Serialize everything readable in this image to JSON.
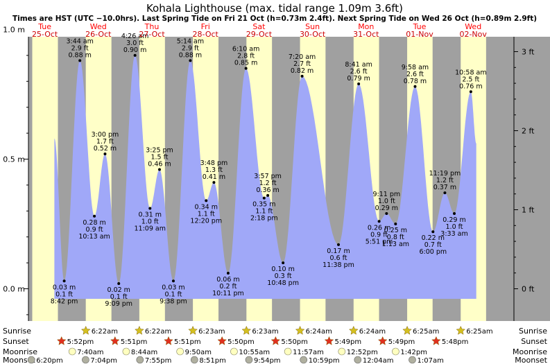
{
  "title": "Kohala Lighthouse (max. tidal range 1.09m 3.6ft)",
  "subtitle": "Times are HST (UTC −10.0hrs). Last Spring Tide on Fri 21 Oct (h=0.73m 2.4ft). Next Spring Tide on Wed 26 Oct (h=0.89m 2.9ft)",
  "colors": {
    "day": "#ffffc8",
    "night": "#a0a0a0",
    "water": "#a0a8f8",
    "day_label": "#ff0000",
    "date_label": "#cc0000",
    "sun_star": "#d4c020",
    "sunset_star": "#e03020",
    "moon": "#ffffc0",
    "moonset": "#b0b0a0"
  },
  "chart_data": {
    "type": "area",
    "title": "Kohala Lighthouse (max. tidal range 1.09m 3.6ft)",
    "ylabel_left_unit": "m",
    "ylabel_right_unit": "ft",
    "yticks_m": [
      "0.0 m",
      "0.5 m",
      "1.0 m"
    ],
    "yticks_ft": [
      "0 ft",
      "1 ft",
      "2 ft",
      "3 ft"
    ],
    "ylim_m": [
      -0.1,
      1.35
    ],
    "days": [
      {
        "dow": "Tue",
        "date": "25-Oct"
      },
      {
        "dow": "Wed",
        "date": "26-Oct"
      },
      {
        "dow": "Thu",
        "date": "27-Oct"
      },
      {
        "dow": "Fri",
        "date": "28-Oct"
      },
      {
        "dow": "Sat",
        "date": "29-Oct"
      },
      {
        "dow": "Sun",
        "date": "30-Oct"
      },
      {
        "dow": "Mon",
        "date": "31-Oct"
      },
      {
        "dow": "Tue",
        "date": "01-Nov"
      },
      {
        "dow": "Wed",
        "date": "02-Nov"
      }
    ],
    "tides": [
      {
        "day": 0,
        "time": "8:42 pm",
        "hour": 20.7,
        "m": 0.03,
        "ft": "0.1 ft",
        "m_label": "0.03 m",
        "type": "low"
      },
      {
        "day": 1,
        "time": "3:44 am",
        "hour": 3.73,
        "m": 0.88,
        "ft": "2.9 ft",
        "m_label": "0.88 m",
        "type": "high"
      },
      {
        "day": 1,
        "time": "10:13 am",
        "hour": 10.22,
        "m": 0.28,
        "ft": "0.9 ft",
        "m_label": "0.28 m",
        "type": "low"
      },
      {
        "day": 1,
        "time": "3:00 pm",
        "hour": 15.0,
        "m": 0.52,
        "ft": "1.7 ft",
        "m_label": "0.52 m",
        "type": "high"
      },
      {
        "day": 1,
        "time": "9:09 pm",
        "hour": 21.15,
        "m": 0.02,
        "ft": "0.1 ft",
        "m_label": "0.02 m",
        "type": "low"
      },
      {
        "day": 2,
        "time": "4:26 am",
        "hour": 4.43,
        "m": 0.9,
        "ft": "3.0 ft",
        "m_label": "0.90 m",
        "type": "high"
      },
      {
        "day": 2,
        "time": "11:09 am",
        "hour": 11.15,
        "m": 0.31,
        "ft": "1.0 ft",
        "m_label": "0.31 m",
        "type": "low"
      },
      {
        "day": 2,
        "time": "3:25 pm",
        "hour": 15.42,
        "m": 0.46,
        "ft": "1.5 ft",
        "m_label": "0.46 m",
        "type": "high"
      },
      {
        "day": 2,
        "time": "9:38 pm",
        "hour": 21.63,
        "m": 0.03,
        "ft": "0.1 ft",
        "m_label": "0.03 m",
        "type": "low"
      },
      {
        "day": 3,
        "time": "5:14 am",
        "hour": 5.23,
        "m": 0.88,
        "ft": "2.9 ft",
        "m_label": "0.88 m",
        "type": "high"
      },
      {
        "day": 3,
        "time": "12:20 pm",
        "hour": 12.33,
        "m": 0.34,
        "ft": "1.1 ft",
        "m_label": "0.34 m",
        "type": "low"
      },
      {
        "day": 3,
        "time": "3:48 pm",
        "hour": 15.8,
        "m": 0.41,
        "ft": "1.3 ft",
        "m_label": "0.41 m",
        "type": "high"
      },
      {
        "day": 3,
        "time": "10:11 pm",
        "hour": 22.18,
        "m": 0.06,
        "ft": "0.2 ft",
        "m_label": "0.06 m",
        "type": "low"
      },
      {
        "day": 4,
        "time": "6:10 am",
        "hour": 6.17,
        "m": 0.85,
        "ft": "2.8 ft",
        "m_label": "0.85 m",
        "type": "high"
      },
      {
        "day": 4,
        "time": "2:18 pm",
        "hour": 14.3,
        "m": 0.35,
        "ft": "1.1 ft",
        "m_label": "0.35 m",
        "type": "low"
      },
      {
        "day": 4,
        "time": "3:57 pm",
        "hour": 15.95,
        "m": 0.36,
        "ft": "1.2 ft",
        "m_label": "0.36 m",
        "type": "high"
      },
      {
        "day": 4,
        "time": "10:48 pm",
        "hour": 22.8,
        "m": 0.1,
        "ft": "0.3 ft",
        "m_label": "0.10 m",
        "type": "low"
      },
      {
        "day": 5,
        "time": "7:20 am",
        "hour": 7.33,
        "m": 0.82,
        "ft": "2.7 ft",
        "m_label": "0.82 m",
        "type": "high"
      },
      {
        "day": 5,
        "time": "11:38 pm",
        "hour": 23.63,
        "m": 0.17,
        "ft": "0.6 ft",
        "m_label": "0.17 m",
        "type": "low"
      },
      {
        "day": 6,
        "time": "8:41 am",
        "hour": 8.68,
        "m": 0.79,
        "ft": "2.6 ft",
        "m_label": "0.79 m",
        "type": "high"
      },
      {
        "day": 6,
        "time": "5:51 pm",
        "hour": 17.85,
        "m": 0.26,
        "ft": "0.9 ft",
        "m_label": "0.26 m",
        "type": "low"
      },
      {
        "day": 6,
        "time": "9:11 pm",
        "hour": 21.18,
        "m": 0.29,
        "ft": "1.0 ft",
        "m_label": "0.29 m",
        "type": "high"
      },
      {
        "day": 7,
        "time": "1:13 am",
        "hour": 1.22,
        "m": 0.25,
        "ft": "0.8 ft",
        "m_label": "0.25 m",
        "type": "low"
      },
      {
        "day": 7,
        "time": "9:58 am",
        "hour": 9.97,
        "m": 0.78,
        "ft": "2.6 ft",
        "m_label": "0.78 m",
        "type": "high"
      },
      {
        "day": 7,
        "time": "6:00 pm",
        "hour": 18.0,
        "m": 0.22,
        "ft": "0.7 ft",
        "m_label": "0.22 m",
        "type": "low"
      },
      {
        "day": 7,
        "time": "11:19 pm",
        "hour": 23.32,
        "m": 0.37,
        "ft": "1.2 ft",
        "m_label": "0.37 m",
        "type": "high"
      },
      {
        "day": 8,
        "time": "3:33 am",
        "hour": 3.55,
        "m": 0.29,
        "ft": "1.0 ft",
        "m_label": "0.29 m",
        "type": "low"
      },
      {
        "day": 8,
        "time": "10:58 am",
        "hour": 10.97,
        "m": 0.76,
        "ft": "2.5 ft",
        "m_label": "0.76 m",
        "type": "high"
      }
    ],
    "curve_start": {
      "day": 0,
      "hour": 16.3,
      "m": 0.58
    },
    "curve_end": {
      "day": 8,
      "hour": 13.4,
      "m": 0.56
    },
    "sunrise": [
      {
        "day": 1,
        "time": "6:22am",
        "hour": 6.37
      },
      {
        "day": 2,
        "time": "6:22am",
        "hour": 6.37
      },
      {
        "day": 3,
        "time": "6:23am",
        "hour": 6.38
      },
      {
        "day": 4,
        "time": "6:23am",
        "hour": 6.38
      },
      {
        "day": 5,
        "time": "6:24am",
        "hour": 6.4
      },
      {
        "day": 6,
        "time": "6:24am",
        "hour": 6.4
      },
      {
        "day": 7,
        "time": "6:25am",
        "hour": 6.42
      },
      {
        "day": 8,
        "time": "6:25am",
        "hour": 6.42
      }
    ],
    "sunset": [
      {
        "day": 1,
        "time": "5:52pm",
        "hour": 17.87
      },
      {
        "day": 2,
        "time": "5:51pm",
        "hour": 17.85
      },
      {
        "day": 3,
        "time": "5:51pm",
        "hour": 17.85
      },
      {
        "day": 4,
        "time": "5:50pm",
        "hour": 17.83
      },
      {
        "day": 5,
        "time": "5:50pm",
        "hour": 17.83
      },
      {
        "day": 6,
        "time": "5:49pm",
        "hour": 17.82
      },
      {
        "day": 7,
        "time": "5:49pm",
        "hour": 17.82
      },
      {
        "day": 8,
        "time": "5:48pm",
        "hour": 17.8
      }
    ],
    "moonrise": [
      {
        "day": 1,
        "time": "7:40am",
        "hour": 7.67
      },
      {
        "day": 2,
        "time": "8:44am",
        "hour": 8.73
      },
      {
        "day": 3,
        "time": "9:50am",
        "hour": 9.83
      },
      {
        "day": 4,
        "time": "10:55am",
        "hour": 10.92
      },
      {
        "day": 5,
        "time": "11:57am",
        "hour": 11.95
      },
      {
        "day": 6,
        "time": "12:52pm",
        "hour": 12.87
      },
      {
        "day": 7,
        "time": "1:42pm",
        "hour": 13.7
      }
    ],
    "moonset": [
      {
        "day": 1,
        "time": "6:20pm",
        "hour": 18.33
      },
      {
        "day": 2,
        "time": "7:04pm",
        "hour": 19.07
      },
      {
        "day": 3,
        "time": "7:55pm",
        "hour": 19.92
      },
      {
        "day": 4,
        "time": "8:51pm",
        "hour": 20.85
      },
      {
        "day": 5,
        "time": "9:54pm",
        "hour": 21.9
      },
      {
        "day": 6,
        "time": "10:59pm",
        "hour": 22.98
      },
      {
        "day": 7,
        "time": "12:04am",
        "hour": 0.07
      },
      {
        "day": 8,
        "time": "1:07am",
        "hour": 1.12
      }
    ],
    "legend_rows": [
      "Sunrise",
      "Sunset",
      "Moonrise",
      "Moonset"
    ]
  }
}
